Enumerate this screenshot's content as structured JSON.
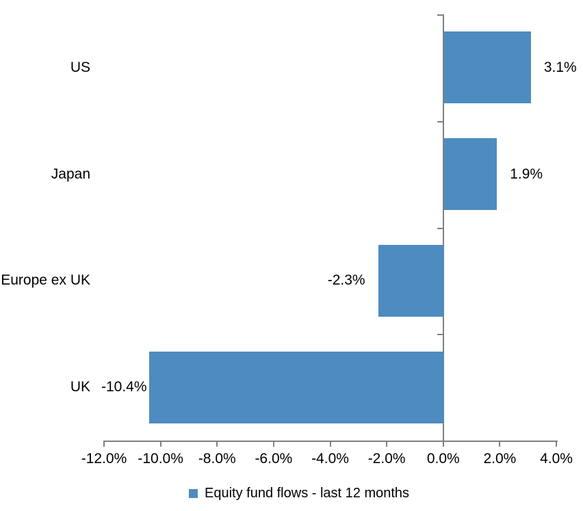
{
  "chart_data": {
    "type": "bar",
    "orientation": "horizontal",
    "categories": [
      "US",
      "Japan",
      "Europe ex UK",
      "UK"
    ],
    "series": [
      {
        "name": "Equity fund flows - last 12 months",
        "values": [
          3.1,
          1.9,
          -2.3,
          -10.4
        ],
        "value_labels": [
          "3.1%",
          "1.9%",
          "-2.3%",
          "-10.4%"
        ]
      }
    ],
    "xlim": [
      -12,
      4
    ],
    "x_ticks": [
      -12,
      -10,
      -8,
      -6,
      -4,
      -2,
      0,
      2,
      4
    ],
    "x_tick_labels": [
      "-12.0%",
      "-10.0%",
      "-8.0%",
      "-6.0%",
      "-4.0%",
      "-2.0%",
      "0.0%",
      "2.0%",
      "4.0%"
    ],
    "grid": "off",
    "legend": {
      "position": "bottom",
      "marker": "square",
      "label": "Equity fund flows - last 12 months"
    },
    "colors": {
      "bar": "#4E8BC0",
      "axis": "#808080",
      "text": "#000000",
      "background": "#FFFFFF"
    }
  }
}
